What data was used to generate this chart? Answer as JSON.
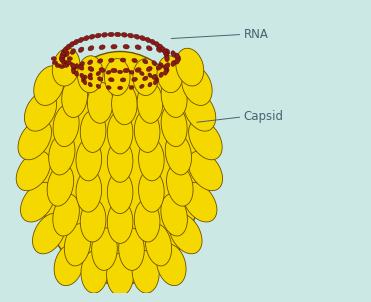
{
  "background_color": "#cce8e4",
  "capsid_color": "#f5d800",
  "capsid_edge_color": "#6b5000",
  "rna_bead_color": "#8B1a1a",
  "rna_bead_edge_color": "#4a0a0a",
  "label_color": "#4a6070",
  "label_rna": "RNA",
  "label_capsid": "Capsid",
  "fig_w": 3.71,
  "fig_h": 3.02,
  "dpi": 100
}
